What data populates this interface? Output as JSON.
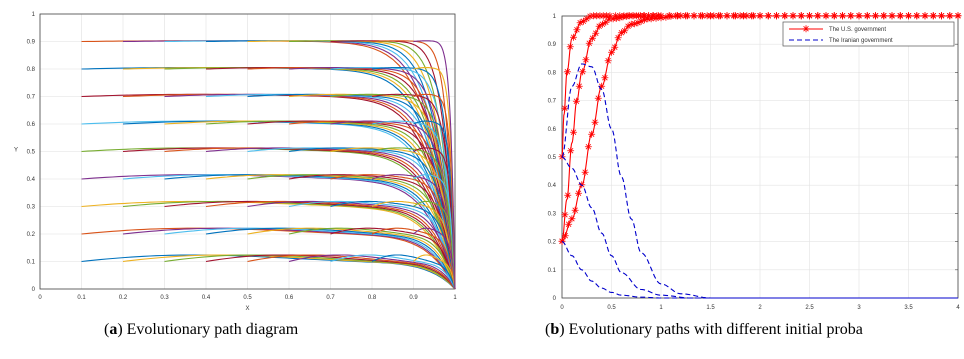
{
  "captions": {
    "a_prefix": "(",
    "a_letter": "a",
    "a_text": ") Evolutionary path diagram",
    "b_prefix": "(",
    "b_letter": "b",
    "b_text": ") Evolutionary paths with different initial proba"
  },
  "chart_data": [
    {
      "type": "line",
      "title": "",
      "xlabel": "X",
      "ylabel": "Y",
      "xlim": [
        0,
        1
      ],
      "ylim": [
        0,
        1
      ],
      "xticks": [
        "0",
        "0.1",
        "0.2",
        "0.3",
        "0.4",
        "0.5",
        "0.6",
        "0.7",
        "0.8",
        "0.9",
        "1"
      ],
      "yticks": [
        "0",
        "0.1",
        "0.2",
        "0.3",
        "0.4",
        "0.5",
        "0.6",
        "0.7",
        "0.8",
        "0.9",
        "1"
      ],
      "grid": true,
      "description_of_series": "Family of evolutionary trajectories; each starts at x0 in {0.1,...,0.9} with y0 in {0.1,...,0.9}, stays near y0 with a slight arch, then curves down to (1,0).",
      "start_x": [
        0.1,
        0.2,
        0.3,
        0.4,
        0.5,
        0.6,
        0.7,
        0.8,
        0.9
      ],
      "start_y": [
        0.1,
        0.2,
        0.3,
        0.4,
        0.5,
        0.6,
        0.7,
        0.8,
        0.9
      ],
      "end_point": [
        1,
        0
      ],
      "colors": [
        "#0072BD",
        "#D95319",
        "#EDB120",
        "#7E2F8E",
        "#77AC30",
        "#4DBEEE",
        "#A2142F"
      ]
    },
    {
      "type": "line",
      "title": "",
      "xlabel": "",
      "ylabel": "",
      "xlim": [
        0,
        4
      ],
      "ylim": [
        0,
        1
      ],
      "xticks": [
        "0",
        "0.5",
        "1",
        "1.5",
        "2",
        "2.5",
        "3",
        "3.5",
        "4"
      ],
      "yticks": [
        "0",
        "0.1",
        "0.2",
        "0.3",
        "0.4",
        "0.5",
        "0.6",
        "0.7",
        "0.8",
        "0.9",
        "1"
      ],
      "grid": true,
      "legend_position": "top-right",
      "series": [
        {
          "name": "The U.S. government",
          "color": "#FF0000",
          "style": "solid-star",
          "curves": [
            {
              "x": [
                0,
                0.05,
                0.1,
                0.15,
                0.2,
                0.3,
                0.4,
                0.5,
                0.7,
                1,
                2,
                3,
                4
              ],
              "y": [
                0.2,
                0.35,
                0.55,
                0.7,
                0.8,
                0.92,
                0.97,
                0.99,
                1.0,
                1.0,
                1.0,
                1.0,
                1.0
              ]
            },
            {
              "x": [
                0,
                0.1,
                0.2,
                0.3,
                0.4,
                0.5,
                0.6,
                0.7,
                0.9,
                1.2,
                2,
                3,
                4
              ],
              "y": [
                0.2,
                0.28,
                0.4,
                0.58,
                0.75,
                0.87,
                0.94,
                0.97,
                0.99,
                1.0,
                1.0,
                1.0,
                1.0
              ]
            },
            {
              "x": [
                0,
                0.02,
                0.05,
                0.1,
                0.2,
                0.3,
                0.5,
                1,
                2,
                3,
                4
              ],
              "y": [
                0.5,
                0.65,
                0.8,
                0.92,
                0.98,
                1.0,
                1.0,
                1.0,
                1.0,
                1.0,
                1.0
              ]
            }
          ]
        },
        {
          "name": "The Iranian government",
          "color": "#0000CC",
          "style": "dashed",
          "curves": [
            {
              "x": [
                0,
                0.1,
                0.2,
                0.3,
                0.4,
                0.5,
                0.6,
                0.7,
                0.8,
                1.0,
                1.2,
                1.5,
                2,
                4
              ],
              "y": [
                0.5,
                0.75,
                0.83,
                0.82,
                0.74,
                0.6,
                0.43,
                0.28,
                0.16,
                0.05,
                0.015,
                0.0,
                0.0,
                0.0
              ]
            },
            {
              "x": [
                0,
                0.1,
                0.2,
                0.3,
                0.4,
                0.5,
                0.6,
                0.8,
                1.0,
                1.3,
                2,
                4
              ],
              "y": [
                0.5,
                0.46,
                0.4,
                0.32,
                0.23,
                0.15,
                0.09,
                0.03,
                0.01,
                0.0,
                0.0,
                0.0
              ]
            },
            {
              "x": [
                0,
                0.1,
                0.2,
                0.3,
                0.4,
                0.5,
                0.6,
                0.8,
                1.0,
                1.2,
                2,
                4
              ],
              "y": [
                0.2,
                0.15,
                0.1,
                0.06,
                0.035,
                0.02,
                0.01,
                0.003,
                0.0,
                0.0,
                0.0,
                0.0
              ]
            }
          ]
        }
      ]
    }
  ]
}
